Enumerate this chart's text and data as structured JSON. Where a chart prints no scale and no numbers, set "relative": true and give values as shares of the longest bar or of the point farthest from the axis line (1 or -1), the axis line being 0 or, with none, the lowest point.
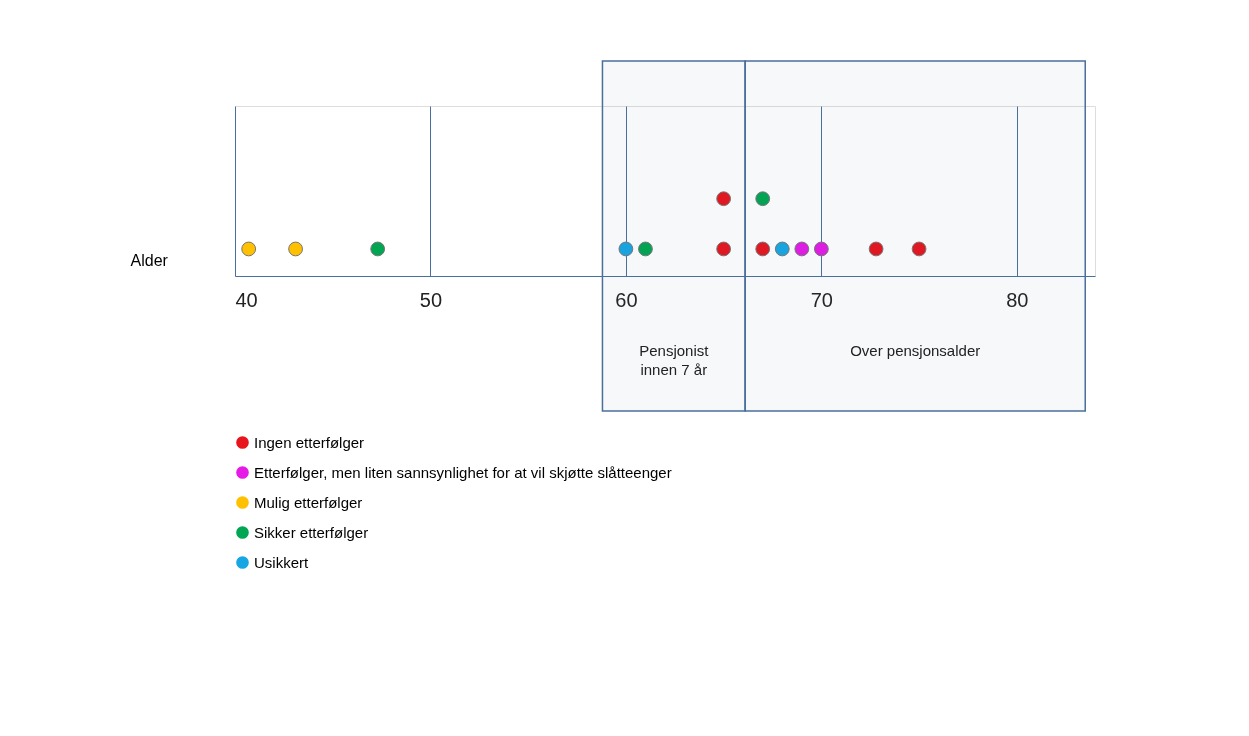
{
  "chart_data": {
    "type": "scatter",
    "xlabel": "Alder",
    "relative": true,
    "xlim": [
      40,
      84
    ],
    "xticks": [
      40,
      50,
      60,
      70,
      80
    ],
    "grid": "x",
    "marker": "circle",
    "legend": "bottom left",
    "series": [
      {
        "name": "Ingen etterfølger",
        "color": "#e8141b",
        "x": [
          65,
          65,
          67,
          72.8,
          75
        ],
        "values": [
          0.35,
          1,
          0.35,
          0.35,
          0.35
        ]
      },
      {
        "name": "Etterfølger, men liten sannsynlighet for at vil skjøtte slåtteenger",
        "color": "#e619e6",
        "x": [
          69,
          70
        ],
        "values": [
          0.35,
          0.35
        ]
      },
      {
        "name": "Mulig etterfølger",
        "color": "#ffc000",
        "x": [
          40.7,
          43.1
        ],
        "values": [
          0.35,
          0.35
        ]
      },
      {
        "name": "Sikker etterfølger",
        "color": "#00a651",
        "x": [
          47.3,
          61,
          67
        ],
        "values": [
          0.35,
          0.35,
          1
        ]
      },
      {
        "name": "Usikkert",
        "color": "#17a6e3",
        "x": [
          60,
          68
        ],
        "values": [
          0.35,
          0.35
        ]
      }
    ],
    "bands": [
      {
        "axis": "x",
        "from": 58.8,
        "to": 66.1,
        "label": "Pensjonist\ninnen 7 år"
      },
      {
        "axis": "x",
        "from": 66.1,
        "to": 83.5,
        "label": "Over pensjonsalder"
      }
    ]
  }
}
